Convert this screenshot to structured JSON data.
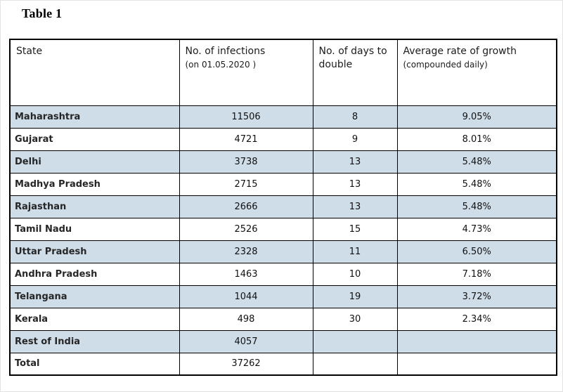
{
  "title": "Table 1",
  "colors": {
    "row_shade": "#cfdde9",
    "border": "#000000",
    "text": "#1a1a1a"
  },
  "table": {
    "headers": {
      "state": "State",
      "infections_line1": "No. of infections",
      "infections_line2": "(on 01.05.2020 )",
      "days": "No. of days to double",
      "growth_line1": "Average rate of growth",
      "growth_line2": "(compounded daily)"
    },
    "rows": [
      {
        "state": "Maharashtra",
        "infections": "11506",
        "days": "8",
        "growth": "9.05%",
        "shaded": true
      },
      {
        "state": "Gujarat",
        "infections": "4721",
        "days": "9",
        "growth": "8.01%",
        "shaded": false
      },
      {
        "state": "Delhi",
        "infections": "3738",
        "days": "13",
        "growth": "5.48%",
        "shaded": true
      },
      {
        "state": "Madhya Pradesh",
        "infections": "2715",
        "days": "13",
        "growth": "5.48%",
        "shaded": false
      },
      {
        "state": "Rajasthan",
        "infections": "2666",
        "days": "13",
        "growth": "5.48%",
        "shaded": true
      },
      {
        "state": "Tamil Nadu",
        "infections": "2526",
        "days": "15",
        "growth": "4.73%",
        "shaded": false
      },
      {
        "state": "Uttar Pradesh",
        "infections": "2328",
        "days": "11",
        "growth": "6.50%",
        "shaded": true
      },
      {
        "state": "Andhra Pradesh",
        "infections": "1463",
        "days": "10",
        "growth": "7.18%",
        "shaded": false
      },
      {
        "state": "Telangana",
        "infections": "1044",
        "days": "19",
        "growth": "3.72%",
        "shaded": true
      },
      {
        "state": "Kerala",
        "infections": "498",
        "days": "30",
        "growth": "2.34%",
        "shaded": false
      },
      {
        "state": "Rest of India",
        "infections": "4057",
        "days": "",
        "growth": "",
        "shaded": true
      },
      {
        "state": "Total",
        "infections": "37262",
        "days": "",
        "growth": "",
        "shaded": false
      }
    ]
  },
  "chart_data": {
    "type": "table",
    "title": "Table 1",
    "columns": [
      "State",
      "No. of infections (on 01.05.2020)",
      "No. of days to double",
      "Average rate of growth (compounded daily)"
    ],
    "rows": [
      [
        "Maharashtra",
        11506,
        8,
        "9.05%"
      ],
      [
        "Gujarat",
        4721,
        9,
        "8.01%"
      ],
      [
        "Delhi",
        3738,
        13,
        "5.48%"
      ],
      [
        "Madhya Pradesh",
        2715,
        13,
        "5.48%"
      ],
      [
        "Rajasthan",
        2666,
        13,
        "5.48%"
      ],
      [
        "Tamil Nadu",
        2526,
        15,
        "4.73%"
      ],
      [
        "Uttar Pradesh",
        2328,
        11,
        "6.50%"
      ],
      [
        "Andhra Pradesh",
        1463,
        10,
        "7.18%"
      ],
      [
        "Telangana",
        1044,
        19,
        "3.72%"
      ],
      [
        "Kerala",
        498,
        30,
        "2.34%"
      ],
      [
        "Rest of India",
        4057,
        null,
        null
      ],
      [
        "Total",
        37262,
        null,
        null
      ]
    ]
  }
}
